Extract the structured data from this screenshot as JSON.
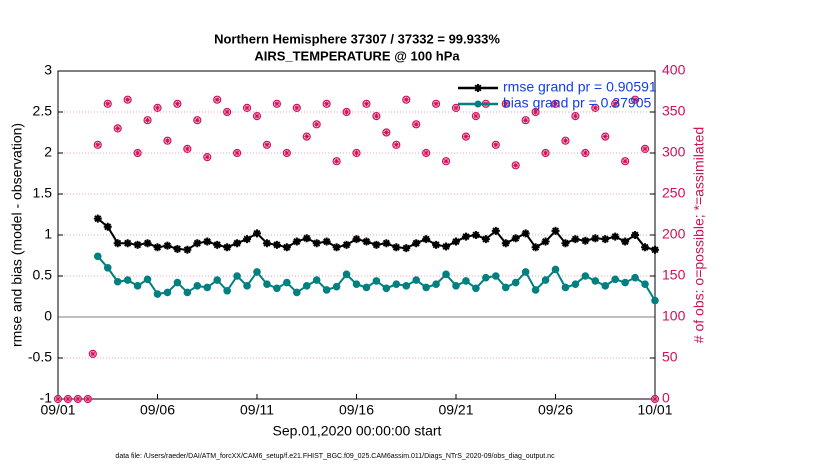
{
  "chart_data": {
    "type": "line",
    "title": "Northern Hemisphere 37307 / 37332 = 99.933%",
    "subtitle": "AIRS_TEMPERATURE @ 100 hPa",
    "xlabel": "Sep.01,2020 00:00:00 start",
    "ylabel": "rmse and bias (model - observation)",
    "y2label": "# of obs: o=possible; *=assimilated",
    "footnote": "data file: /Users/raeder/DAI/ATM_forcXX/CAM6_setup/f.e21.FHIST_BGC.f09_025.CAM6assim.011/Diags_NTrS_2020-09/obs_diag_output.nc",
    "xlim": [
      0,
      30
    ],
    "xticks": [
      {
        "value": 0,
        "label": "09/01"
      },
      {
        "value": 5,
        "label": "09/06"
      },
      {
        "value": 10,
        "label": "09/11"
      },
      {
        "value": 15,
        "label": "09/16"
      },
      {
        "value": 20,
        "label": "09/21"
      },
      {
        "value": 25,
        "label": "09/26"
      },
      {
        "value": 30,
        "label": "10/01"
      }
    ],
    "ylim": [
      -1,
      3
    ],
    "yticks": [
      -1,
      -0.5,
      0,
      0.5,
      1,
      1.5,
      2,
      2.5,
      3
    ],
    "y2lim": [
      0,
      400
    ],
    "y2ticks": [
      0,
      50,
      100,
      150,
      200,
      250,
      300,
      350,
      400
    ],
    "y2_color": "#d0105a",
    "grid": true,
    "legend_position": "upper right",
    "x": [
      0,
      0.5,
      1,
      1.5,
      1.75,
      2,
      2.5,
      3,
      3.5,
      4,
      4.5,
      5,
      5.5,
      6,
      6.5,
      7,
      7.5,
      8,
      8.5,
      9,
      9.5,
      10,
      10.5,
      11,
      11.5,
      12,
      12.5,
      13,
      13.5,
      14,
      14.5,
      15,
      15.5,
      16,
      16.5,
      17,
      17.5,
      18,
      18.5,
      19,
      19.5,
      20,
      20.5,
      21,
      21.5,
      22,
      22.5,
      23,
      23.5,
      24,
      24.5,
      25,
      25.5,
      26,
      26.5,
      27,
      27.5,
      28,
      28.5,
      29,
      29.5,
      30
    ],
    "series": [
      {
        "name": "rmse grand pr = 0.90591",
        "color": "#000000",
        "marker": "*",
        "values": [
          null,
          null,
          null,
          null,
          null,
          1.2,
          1.1,
          0.9,
          0.9,
          0.88,
          0.9,
          0.85,
          0.87,
          0.83,
          0.82,
          0.9,
          0.92,
          0.88,
          0.85,
          0.9,
          0.95,
          1.02,
          0.9,
          0.88,
          0.85,
          0.92,
          0.96,
          0.9,
          0.92,
          0.85,
          0.88,
          0.95,
          0.92,
          0.88,
          0.9,
          0.85,
          0.84,
          0.9,
          0.95,
          0.88,
          0.86,
          0.92,
          0.98,
          1.0,
          0.95,
          1.05,
          0.9,
          0.96,
          1.02,
          0.85,
          0.92,
          1.05,
          0.9,
          0.95,
          0.93,
          0.96,
          0.95,
          0.98,
          0.92,
          1.0,
          0.85,
          0.82
        ]
      },
      {
        "name": "bias grand pr = 0.37905",
        "color": "#008080",
        "marker": "o",
        "values": [
          null,
          null,
          null,
          null,
          null,
          0.74,
          0.6,
          0.43,
          0.45,
          0.38,
          0.46,
          0.28,
          0.3,
          0.42,
          0.3,
          0.38,
          0.36,
          0.45,
          0.32,
          0.5,
          0.38,
          0.55,
          0.4,
          0.35,
          0.42,
          0.3,
          0.38,
          0.45,
          0.33,
          0.37,
          0.52,
          0.4,
          0.36,
          0.44,
          0.35,
          0.4,
          0.38,
          0.45,
          0.36,
          0.4,
          0.52,
          0.38,
          0.44,
          0.35,
          0.48,
          0.5,
          0.36,
          0.42,
          0.55,
          0.33,
          0.45,
          0.58,
          0.36,
          0.4,
          0.5,
          0.44,
          0.38,
          0.46,
          0.42,
          0.48,
          0.4,
          0.2
        ]
      },
      {
        "color": "#d0105a",
        "axis": "y2",
        "marker": "o",
        "values": [
          0,
          0,
          0,
          0,
          55,
          310,
          360,
          330,
          365,
          300,
          340,
          355,
          315,
          360,
          305,
          340,
          295,
          365,
          350,
          300,
          355,
          345,
          310,
          360,
          300,
          355,
          320,
          335,
          360,
          290,
          350,
          300,
          360,
          345,
          325,
          310,
          365,
          335,
          300,
          360,
          290,
          355,
          320,
          345,
          360,
          310,
          360,
          285,
          340,
          350,
          300,
          360,
          315,
          345,
          300,
          355,
          320,
          360,
          290,
          365,
          305,
          0
        ]
      },
      {
        "color": "#d0105a",
        "axis": "y2",
        "marker": "*",
        "values": [
          0,
          0,
          0,
          0,
          55,
          310,
          360,
          330,
          365,
          300,
          340,
          355,
          315,
          360,
          305,
          340,
          295,
          365,
          350,
          300,
          355,
          345,
          310,
          360,
          300,
          355,
          320,
          335,
          360,
          290,
          350,
          300,
          360,
          345,
          325,
          310,
          365,
          335,
          300,
          360,
          290,
          355,
          320,
          345,
          360,
          310,
          360,
          285,
          340,
          350,
          300,
          360,
          315,
          345,
          300,
          355,
          320,
          360,
          290,
          365,
          305,
          0
        ]
      }
    ]
  }
}
